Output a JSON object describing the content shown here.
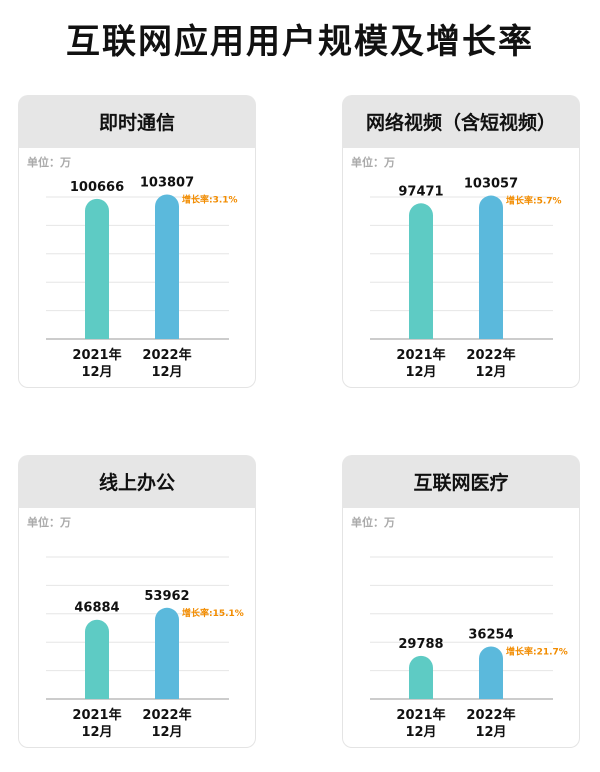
{
  "title": "互联网应用用户规模及增长率",
  "unit_label": "单位：万",
  "colors": {
    "bar_2021": "#5ecbc4",
    "bar_2022": "#5bb9dc",
    "growth": "#f28c00",
    "grid": "#e6e6e6"
  },
  "chart_data": [
    {
      "type": "bar",
      "title": "即时通信",
      "categories": [
        "2021年\n12月",
        "2022年\n12月"
      ],
      "values": [
        100666,
        103807
      ],
      "value_labels": [
        "100666",
        "103807"
      ],
      "growth_label": "增长率:3.1%",
      "ylim": [
        0,
        102000
      ],
      "grid": true
    },
    {
      "type": "bar",
      "title": "网络视频（含短视频）",
      "categories": [
        "2021年\n12月",
        "2022年\n12月"
      ],
      "values": [
        97471,
        103057
      ],
      "value_labels": [
        "97471",
        "103057"
      ],
      "growth_label": "增长率:5.7%",
      "ylim": [
        0,
        102000
      ],
      "grid": true
    },
    {
      "type": "bar",
      "title": "线上办公",
      "categories": [
        "2021年\n12月",
        "2022年\n12月"
      ],
      "values": [
        46884,
        53962
      ],
      "value_labels": [
        "46884",
        "53962"
      ],
      "growth_label": "增长率:15.1%",
      "ylim": [
        0,
        84000
      ],
      "grid": true
    },
    {
      "type": "bar",
      "title": "互联网医疗",
      "categories": [
        "2021年\n12月",
        "2022年\n12月"
      ],
      "values": [
        29788,
        36254
      ],
      "value_labels": [
        "29788",
        "36254"
      ],
      "growth_label": "增长率:21.7%",
      "ylim": [
        0,
        98000
      ],
      "grid": true
    }
  ]
}
